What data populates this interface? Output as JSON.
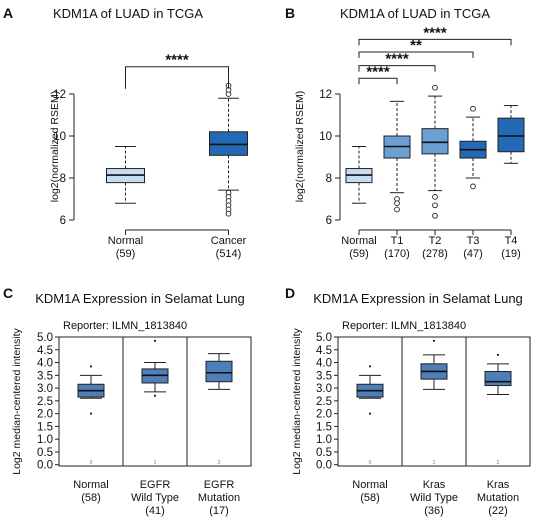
{
  "chart_data": [
    {
      "panel": "A",
      "type": "box",
      "title": "KDM1A of LUAD in TCGA",
      "ylabel": "log2(normalized RSEM)",
      "ylim": [
        6,
        13
      ],
      "yticks": [
        6,
        8,
        10,
        12
      ],
      "style": "tcga",
      "categories": [
        "Normal",
        "Cancer"
      ],
      "counts": [
        "(59)",
        "(514)"
      ],
      "boxes": [
        {
          "color": "#c6dcf2",
          "q1": 7.78,
          "median": 8.14,
          "q3": 8.45,
          "whisker_low": 6.8,
          "whisker_high": 9.5,
          "outliers": []
        },
        {
          "color": "#2369b5",
          "q1": 9.08,
          "median": 9.6,
          "q3": 10.2,
          "whisker_low": 7.42,
          "whisker_high": 11.8,
          "outliers": [
            7.3,
            7.1,
            6.9,
            6.7,
            6.5,
            6.3,
            12.0,
            12.2,
            12.4
          ]
        }
      ],
      "significance": [
        {
          "from": 0,
          "to": 1,
          "label": "****",
          "y": 13.3
        }
      ]
    },
    {
      "panel": "B",
      "type": "box",
      "title": "KDM1A of LUAD in TCGA",
      "ylabel": "log2(normalized RSEM)",
      "ylim": [
        6,
        13
      ],
      "yticks": [
        6,
        8,
        10,
        12
      ],
      "style": "tcga",
      "categories": [
        "Normal",
        "T1",
        "T2",
        "T3",
        "T4"
      ],
      "counts": [
        "(59)",
        "(170)",
        "(278)",
        "(47)",
        "(19)"
      ],
      "boxes": [
        {
          "color": "#c6dcf2",
          "q1": 7.78,
          "median": 8.14,
          "q3": 8.45,
          "whisker_low": 6.8,
          "whisker_high": 9.5,
          "outliers": []
        },
        {
          "color": "#6c9fd3",
          "q1": 8.95,
          "median": 9.5,
          "q3": 10.0,
          "whisker_low": 7.3,
          "whisker_high": 11.65,
          "outliers": [
            7.0,
            6.8,
            6.5
          ]
        },
        {
          "color": "#6c9fd3",
          "q1": 9.15,
          "median": 9.7,
          "q3": 10.35,
          "whisker_low": 7.4,
          "whisker_high": 11.9,
          "outliers": [
            7.1,
            6.7,
            6.2,
            12.3
          ]
        },
        {
          "color": "#2369b5",
          "q1": 8.95,
          "median": 9.35,
          "q3": 9.75,
          "whisker_low": 8.0,
          "whisker_high": 10.9,
          "outliers": [
            7.6,
            11.3
          ]
        },
        {
          "color": "#2369b5",
          "q1": 9.25,
          "median": 10.0,
          "q3": 10.85,
          "whisker_low": 8.7,
          "whisker_high": 11.45,
          "outliers": []
        }
      ],
      "significance": [
        {
          "from": 0,
          "to": 4,
          "label": "****",
          "y": 14.6
        },
        {
          "from": 0,
          "to": 3,
          "label": "**",
          "y": 14.0
        },
        {
          "from": 0,
          "to": 2,
          "label": "****",
          "y": 13.35
        },
        {
          "from": 0,
          "to": 1,
          "label": "****",
          "y": 12.75
        }
      ]
    },
    {
      "panel": "C",
      "type": "box",
      "title": "KDM1A Expression in Selamat Lung",
      "reporter": "Reporter: ILMN_1813840",
      "ylabel": "Log2 median-centered intensity",
      "ylim": [
        -0.05,
        5.0
      ],
      "yticks": [
        0.0,
        0.5,
        1.0,
        1.5,
        2.0,
        2.5,
        3.0,
        3.5,
        4.0,
        4.5,
        5.0
      ],
      "style": "oncomine",
      "categories": [
        "Normal",
        "EGFR\nWild Type",
        "EGFR\nMutation"
      ],
      "counts": [
        "(58)",
        "(41)",
        "(17)"
      ],
      "column_index": [
        "0",
        "1",
        "2"
      ],
      "boxes": [
        {
          "color": "#4f7fb8",
          "q1": 2.65,
          "median": 2.9,
          "q3": 3.15,
          "whisker_low": 2.6,
          "whisker_high": 3.5,
          "outliers": [
            2.0,
            3.85
          ]
        },
        {
          "color": "#4f7fb8",
          "q1": 3.2,
          "median": 3.5,
          "q3": 3.75,
          "whisker_low": 2.85,
          "whisker_high": 4.0,
          "outliers": [
            2.7,
            4.85
          ]
        },
        {
          "color": "#4f7fb8",
          "q1": 3.25,
          "median": 3.6,
          "q3": 4.05,
          "whisker_low": 2.95,
          "whisker_high": 4.35,
          "outliers": []
        }
      ]
    },
    {
      "panel": "D",
      "type": "box",
      "title": "KDM1A Expression in Selamat Lung",
      "reporter": "Reporter: ILMN_1813840",
      "ylabel": "Log2 median-centered intensity",
      "ylim": [
        -0.05,
        5.0
      ],
      "yticks": [
        0.0,
        0.5,
        1.0,
        1.5,
        2.0,
        2.5,
        3.0,
        3.5,
        4.0,
        4.5,
        5.0
      ],
      "style": "oncomine",
      "categories": [
        "Normal",
        "Kras\nWild Type",
        "Kras\nMutation"
      ],
      "counts": [
        "(58)",
        "(36)",
        "(22)"
      ],
      "column_index": [
        "0",
        "1",
        "2"
      ],
      "boxes": [
        {
          "color": "#4f7fb8",
          "q1": 2.65,
          "median": 2.9,
          "q3": 3.15,
          "whisker_low": 2.6,
          "whisker_high": 3.5,
          "outliers": [
            2.0,
            3.85
          ]
        },
        {
          "color": "#4f7fb8",
          "q1": 3.35,
          "median": 3.65,
          "q3": 3.95,
          "whisker_low": 2.95,
          "whisker_high": 4.3,
          "outliers": [
            4.85
          ]
        },
        {
          "color": "#4f7fb8",
          "q1": 3.1,
          "median": 3.25,
          "q3": 3.65,
          "whisker_low": 2.75,
          "whisker_high": 3.95,
          "outliers": [
            4.3
          ]
        }
      ]
    }
  ]
}
